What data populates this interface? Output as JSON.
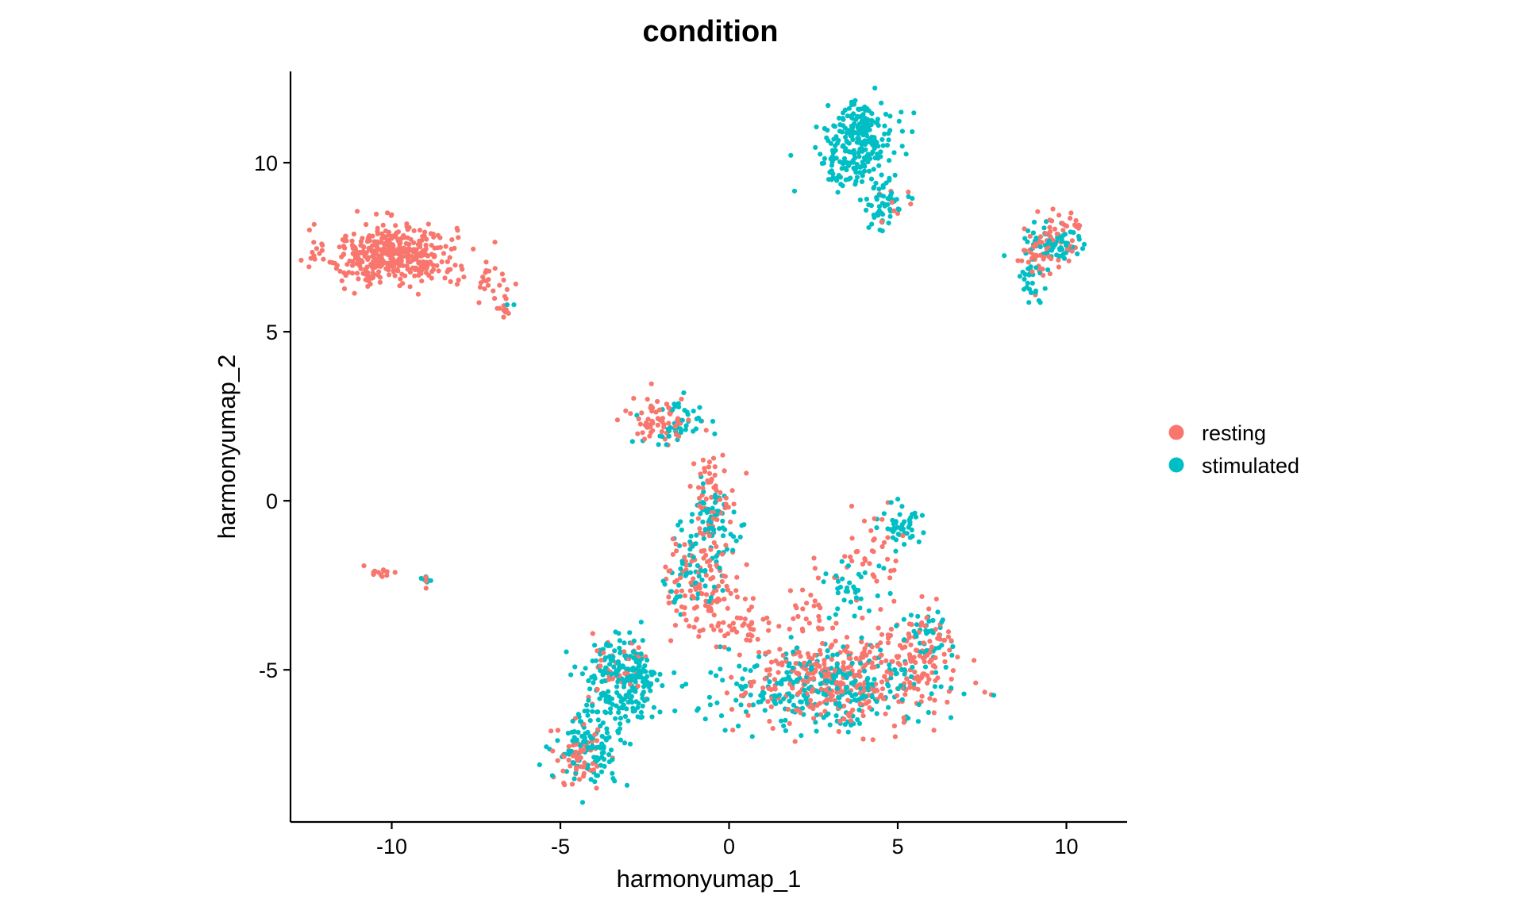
{
  "chart_data": {
    "type": "scatter",
    "title": "condition",
    "xlabel": "harmonyumap_1",
    "ylabel": "harmonyumap_2",
    "xlim": [
      -13,
      11.8
    ],
    "ylim": [
      -9.5,
      12.7
    ],
    "xticks": [
      -10,
      -5,
      0,
      5,
      10
    ],
    "yticks": [
      -5,
      0,
      5,
      10
    ],
    "xtick_labels": [
      "-10",
      "-5",
      "0",
      "5",
      "10"
    ],
    "ytick_labels": [
      "-5",
      "0",
      "5",
      "10"
    ],
    "grid": false,
    "legend_position": "right",
    "series": [
      {
        "name": "resting",
        "color": "#F8766D",
        "clusters": [
          {
            "cx": -10.0,
            "cy": 7.3,
            "sx": 0.95,
            "sy": 0.45,
            "n": 420
          },
          {
            "cx": -7.2,
            "cy": 6.4,
            "sx": 0.5,
            "sy": 0.3,
            "n": 25
          },
          {
            "cx": -6.6,
            "cy": 5.7,
            "sx": 0.3,
            "sy": 0.15,
            "n": 10
          },
          {
            "cx": -10.4,
            "cy": -2.1,
            "sx": 0.3,
            "sy": 0.08,
            "n": 14
          },
          {
            "cx": -9.0,
            "cy": -2.4,
            "sx": 0.15,
            "sy": 0.1,
            "n": 3
          },
          {
            "cx": -2.0,
            "cy": 2.4,
            "sx": 0.45,
            "sy": 0.35,
            "n": 70
          },
          {
            "cx": -0.5,
            "cy": 0.2,
            "sx": 0.35,
            "sy": 0.6,
            "n": 60
          },
          {
            "cx": -0.8,
            "cy": -2.4,
            "sx": 0.6,
            "sy": 0.7,
            "n": 110
          },
          {
            "cx": 0.2,
            "cy": -3.6,
            "sx": 0.6,
            "sy": 0.4,
            "n": 45
          },
          {
            "cx": 3.4,
            "cy": -5.3,
            "sx": 1.5,
            "sy": 0.65,
            "n": 330
          },
          {
            "cx": 5.6,
            "cy": -4.4,
            "sx": 0.5,
            "sy": 0.7,
            "n": 80
          },
          {
            "cx": 4.2,
            "cy": -1.5,
            "sx": 0.5,
            "sy": 0.6,
            "n": 35
          },
          {
            "cx": 2.6,
            "cy": -3.0,
            "sx": 0.4,
            "sy": 0.5,
            "n": 25
          },
          {
            "cx": -4.5,
            "cy": -7.6,
            "sx": 0.4,
            "sy": 0.5,
            "n": 55
          },
          {
            "cx": -3.2,
            "cy": -5.0,
            "sx": 0.5,
            "sy": 0.5,
            "n": 40
          },
          {
            "cx": 9.3,
            "cy": 7.3,
            "sx": 0.45,
            "sy": 0.4,
            "n": 55
          },
          {
            "cx": 10.1,
            "cy": 8.1,
            "sx": 0.3,
            "sy": 0.2,
            "n": 20
          },
          {
            "cx": 4.5,
            "cy": 8.7,
            "sx": 0.5,
            "sy": 0.3,
            "n": 8
          }
        ]
      },
      {
        "name": "stimulated",
        "color": "#00BFC4",
        "clusters": [
          {
            "cx": 3.9,
            "cy": 10.7,
            "sx": 0.5,
            "sy": 0.55,
            "n": 230
          },
          {
            "cx": 4.5,
            "cy": 8.8,
            "sx": 0.35,
            "sy": 0.45,
            "n": 55
          },
          {
            "cx": 3.2,
            "cy": 9.8,
            "sx": 0.3,
            "sy": 0.3,
            "n": 25
          },
          {
            "cx": 9.6,
            "cy": 7.6,
            "sx": 0.45,
            "sy": 0.35,
            "n": 75
          },
          {
            "cx": 8.9,
            "cy": 6.5,
            "sx": 0.2,
            "sy": 0.4,
            "n": 25
          },
          {
            "cx": -6.5,
            "cy": 5.9,
            "sx": 0.1,
            "sy": 0.1,
            "n": 2
          },
          {
            "cx": -9.0,
            "cy": -2.4,
            "sx": 0.15,
            "sy": 0.1,
            "n": 6
          },
          {
            "cx": -3.2,
            "cy": -5.4,
            "sx": 0.6,
            "sy": 0.7,
            "n": 230
          },
          {
            "cx": -4.1,
            "cy": -7.3,
            "sx": 0.5,
            "sy": 0.5,
            "n": 110
          },
          {
            "cx": -1.6,
            "cy": 2.2,
            "sx": 0.5,
            "sy": 0.35,
            "n": 45
          },
          {
            "cx": -0.4,
            "cy": -0.8,
            "sx": 0.45,
            "sy": 0.7,
            "n": 75
          },
          {
            "cx": -1.1,
            "cy": -2.4,
            "sx": 0.4,
            "sy": 0.5,
            "n": 40
          },
          {
            "cx": 2.8,
            "cy": -5.5,
            "sx": 1.6,
            "sy": 0.6,
            "n": 300
          },
          {
            "cx": 5.0,
            "cy": -0.7,
            "sx": 0.3,
            "sy": 0.35,
            "n": 45
          },
          {
            "cx": 3.6,
            "cy": -2.5,
            "sx": 0.45,
            "sy": 0.5,
            "n": 35
          },
          {
            "cx": 5.8,
            "cy": -4.0,
            "sx": 0.4,
            "sy": 0.5,
            "n": 35
          }
        ]
      }
    ]
  }
}
